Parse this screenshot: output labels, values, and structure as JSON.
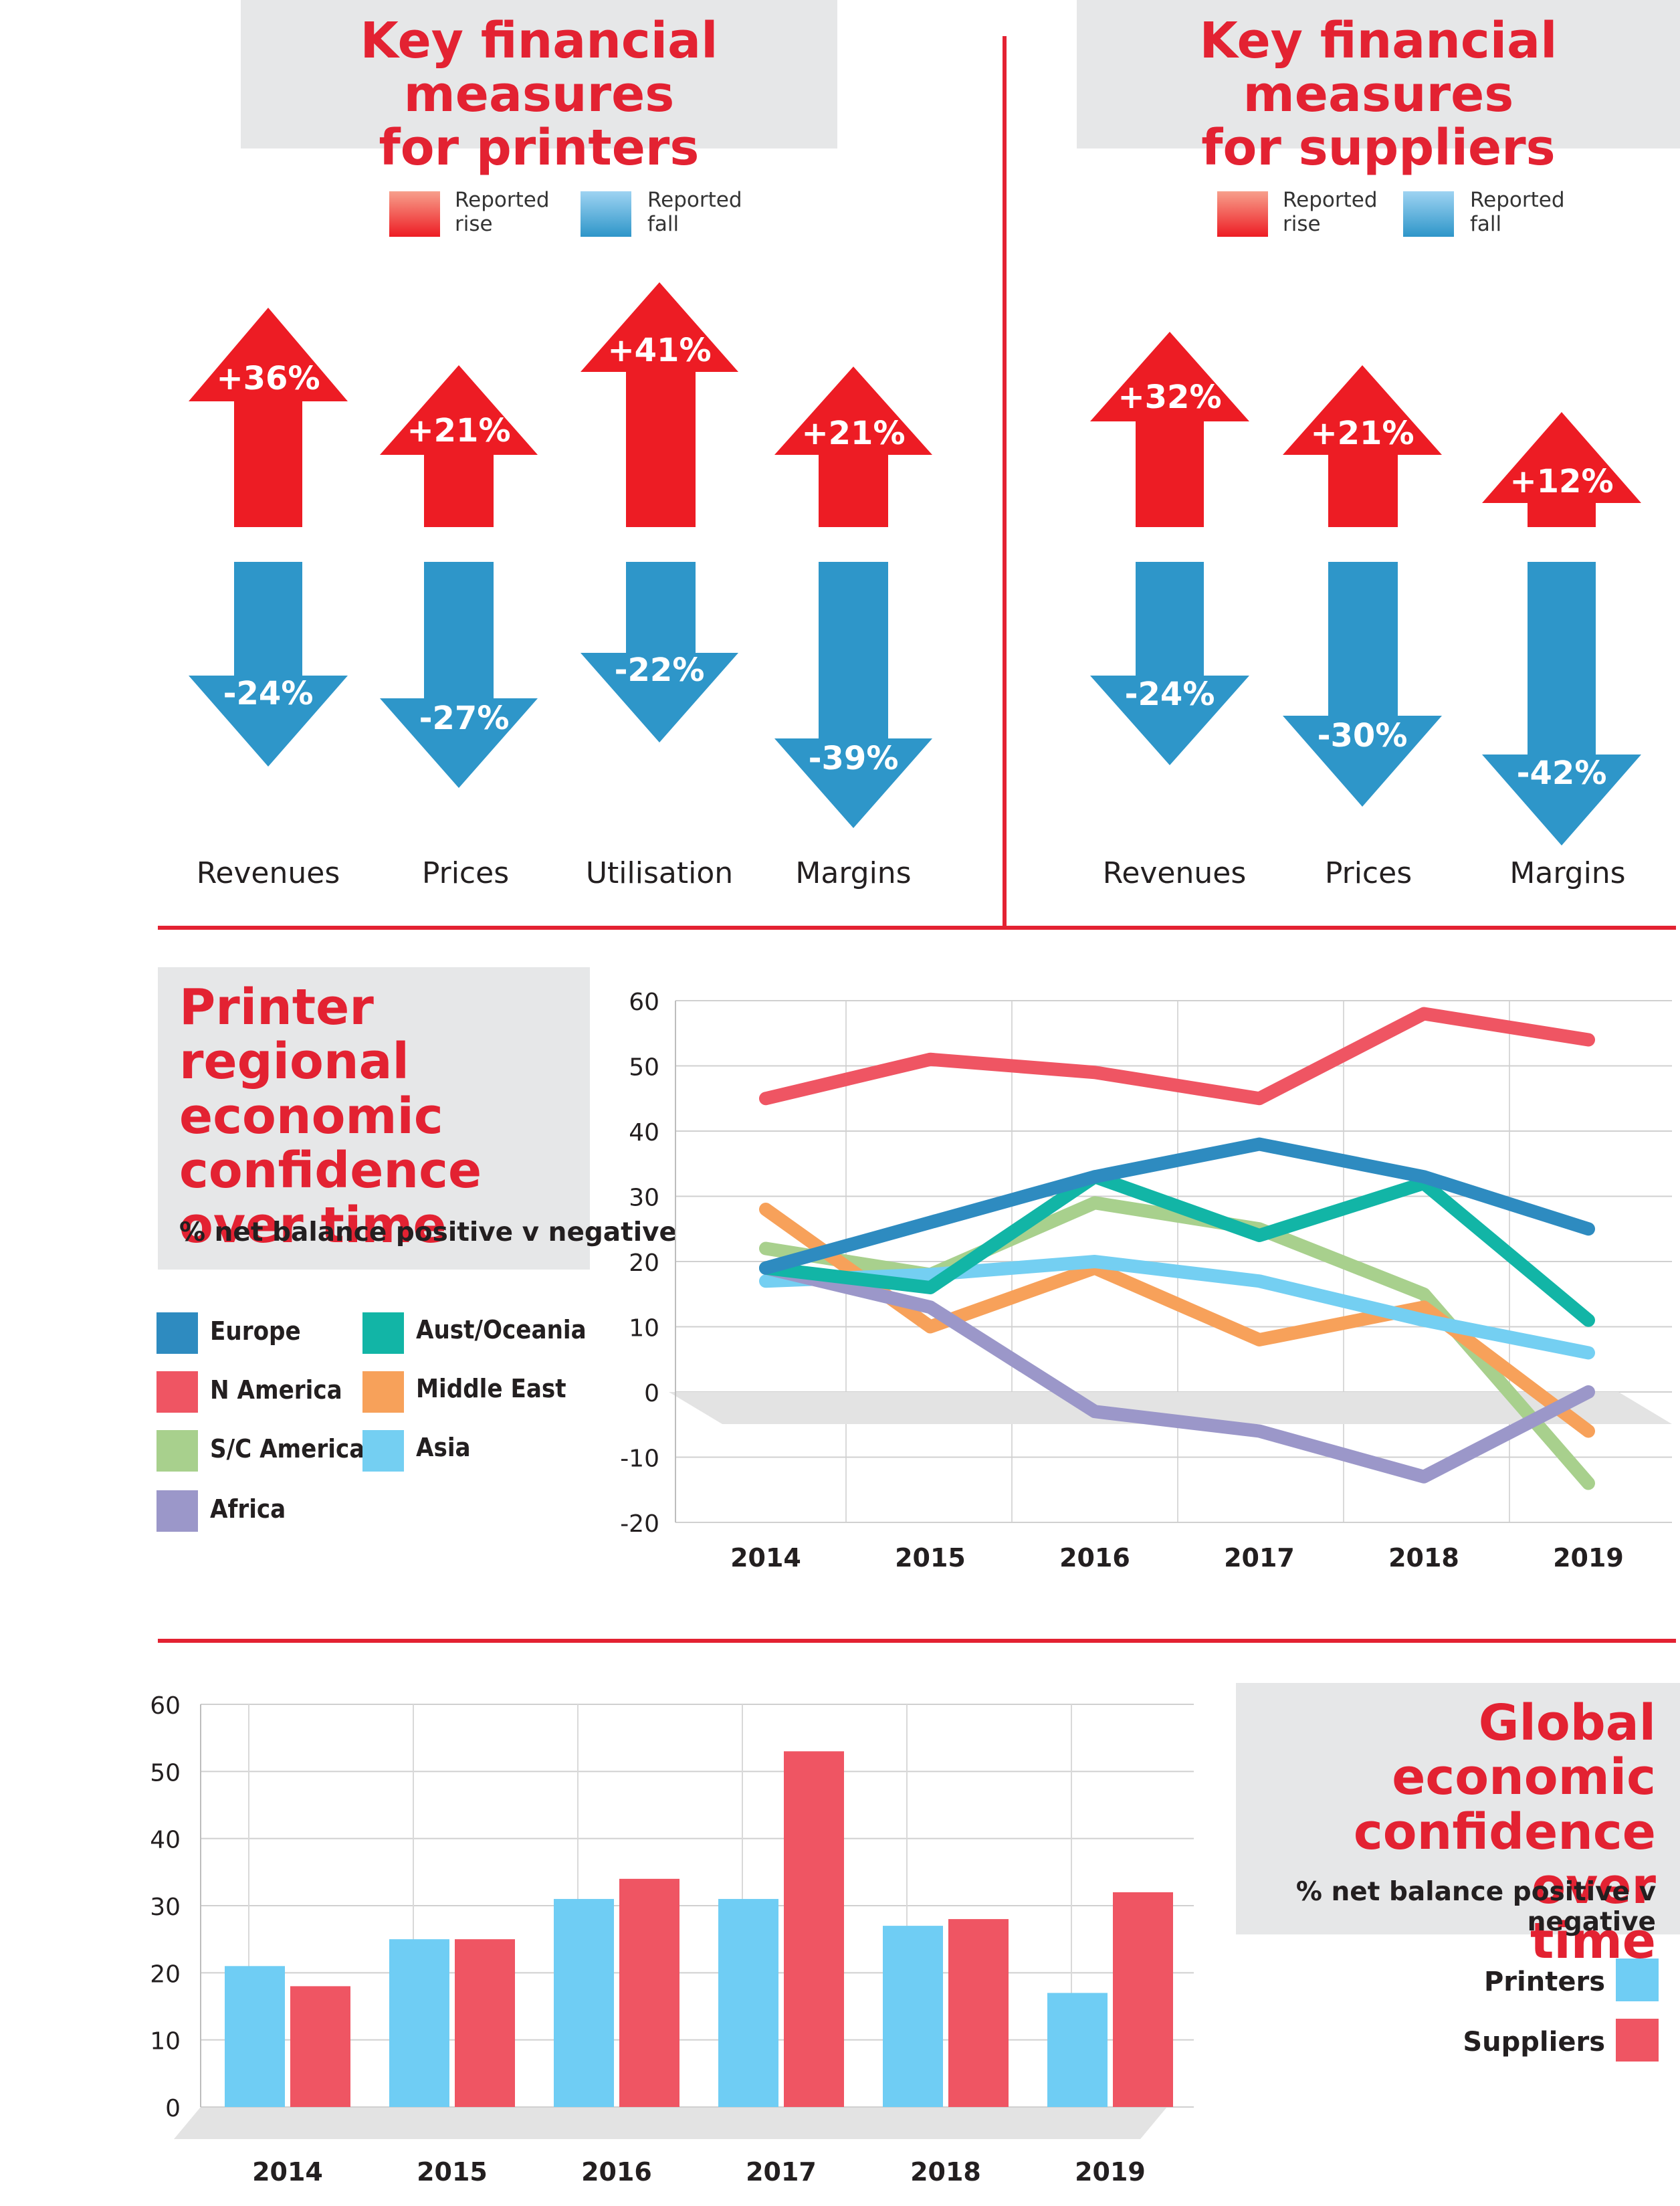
{
  "colors": {
    "red": "#ed1c24",
    "blue": "#2e96c9",
    "accent_red": "#e32232"
  },
  "printers_panel": {
    "title": "Key financial measures\nfor printers",
    "legend": {
      "rise_label": "Reported\nrise",
      "fall_label": "Reported\nfall"
    },
    "measures": [
      {
        "name": "Revenues",
        "rise": "+36%",
        "fall": "-24%"
      },
      {
        "name": "Prices",
        "rise": "+21%",
        "fall": "-27%"
      },
      {
        "name": "Utilisation",
        "rise": "+41%",
        "fall": "-22%"
      },
      {
        "name": "Margins",
        "rise": "+21%",
        "fall": "-39%"
      }
    ]
  },
  "suppliers_panel": {
    "title": "Key financial measures\nfor suppliers",
    "legend": {
      "rise_label": "Reported\nrise",
      "fall_label": "Reported\nfall"
    },
    "measures": [
      {
        "name": "Revenues",
        "rise": "+32%",
        "fall": "-24%"
      },
      {
        "name": "Prices",
        "rise": "+21%",
        "fall": "-30%"
      },
      {
        "name": "Margins",
        "rise": "+12%",
        "fall": "-42%"
      }
    ]
  },
  "regional": {
    "title": "Printer regional\neconomic\nconfidence\nover time",
    "subtitle": "% net balance positive v negative"
  },
  "global": {
    "title": "Global economic\nconfidence over\ntime",
    "subtitle": "% net balance positive v negative"
  },
  "chart_data": [
    {
      "type": "line",
      "x": [
        "2014",
        "2015",
        "2016",
        "2017",
        "2018",
        "2019"
      ],
      "ylim": [
        -20,
        60
      ],
      "yticks": [
        -20,
        -10,
        0,
        10,
        20,
        30,
        40,
        50,
        60
      ],
      "grid": true,
      "legend_position": "left",
      "series": [
        {
          "name": "Europe",
          "color": "#2e8bc0",
          "values": [
            19,
            26,
            33,
            38,
            33,
            25
          ]
        },
        {
          "name": "N America",
          "color": "#ef5563",
          "values": [
            45,
            51,
            49,
            45,
            58,
            54
          ]
        },
        {
          "name": "S/C America",
          "color": "#a8d08d",
          "values": [
            22,
            18,
            29,
            25,
            15,
            -14
          ]
        },
        {
          "name": "Africa",
          "color": "#9b97c9",
          "values": [
            19,
            13,
            -3,
            -6,
            -13,
            0
          ]
        },
        {
          "name": "Aust/Oceania",
          "color": "#12b5a6",
          "values": [
            19,
            16,
            33,
            24,
            32,
            11
          ]
        },
        {
          "name": "Middle East",
          "color": "#f7a15a",
          "values": [
            28,
            10,
            19,
            8,
            13,
            -6
          ]
        },
        {
          "name": "Asia",
          "color": "#74cff2",
          "values": [
            17,
            18,
            20,
            17,
            11,
            6
          ]
        }
      ]
    },
    {
      "type": "bar",
      "categories": [
        "2014",
        "2015",
        "2016",
        "2017",
        "2018",
        "2019"
      ],
      "ylim": [
        0,
        60
      ],
      "yticks": [
        0,
        10,
        20,
        30,
        40,
        50,
        60
      ],
      "grid": true,
      "legend_position": "right",
      "series": [
        {
          "name": "Printers",
          "color": "#6fcdf4",
          "values": [
            21,
            25,
            31,
            31,
            27,
            17
          ]
        },
        {
          "name": "Suppliers",
          "color": "#ef5563",
          "values": [
            18,
            25,
            34,
            53,
            28,
            32
          ]
        }
      ]
    }
  ]
}
